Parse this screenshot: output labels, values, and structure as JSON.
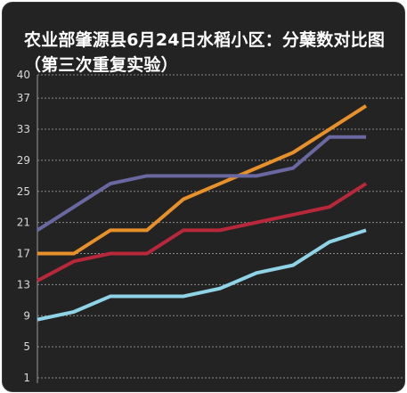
{
  "chart_data": {
    "type": "line",
    "title": "农业部肇源县6月24日水稻小区：分蘖数对比图（第三次重复实验）",
    "xlabel": "",
    "ylabel": "",
    "ylim": [
      1,
      40
    ],
    "yticks": [
      1,
      5,
      9,
      13,
      17,
      21,
      25,
      29,
      33,
      37,
      40
    ],
    "x": [
      1,
      2,
      3,
      4,
      5,
      6,
      7,
      8,
      9,
      10,
      11
    ],
    "grid": true,
    "legend": "none",
    "series": [
      {
        "color": "#e8902a",
        "values": [
          17,
          17,
          20,
          20,
          24,
          26,
          28,
          30,
          33,
          36,
          null
        ]
      },
      {
        "color": "#6a68a0",
        "values": [
          20,
          23,
          26,
          27,
          27,
          27,
          27,
          28,
          32,
          32,
          null
        ]
      },
      {
        "color": "#b8283a",
        "values": [
          13.5,
          16,
          17,
          17,
          20,
          20,
          21,
          22,
          23,
          26,
          null
        ]
      },
      {
        "color": "#8fd3e6",
        "values": [
          8.5,
          9.5,
          11.5,
          11.5,
          11.5,
          12.5,
          14.5,
          15.5,
          18.5,
          20,
          null
        ]
      }
    ]
  }
}
